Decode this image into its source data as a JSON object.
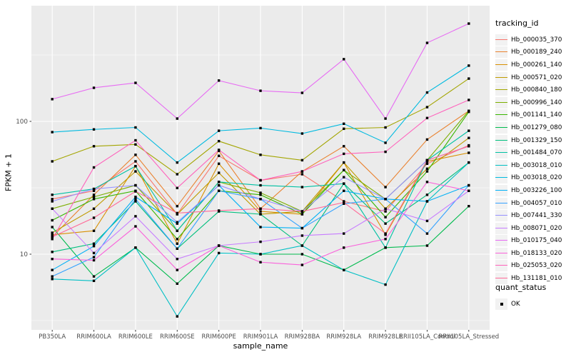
{
  "figure": {
    "background": "#FFFFFF",
    "panel_background": "#EBEBEB",
    "grid_color": "#FFFFFF",
    "tick_color": "#333333",
    "tick_label_color": "#4D4D4D"
  },
  "chart_data": {
    "type": "line",
    "title": "",
    "xlabel": "sample_name",
    "ylabel": "FPKM + 1",
    "y_scale": "log10",
    "ylim": [
      2.7,
      740
    ],
    "y_major_ticks": [
      10,
      100
    ],
    "y_minor_ticks": [
      3.162,
      31.62,
      316.2
    ],
    "grid": true,
    "marker": "filled-black-square",
    "legend_position": "right",
    "legend_title": "tracking_id",
    "categories": [
      "PB350LA",
      "RRIM600LA",
      "RRIM600LE",
      "RRIM600SE",
      "RRIM600PE",
      "RRIM901LA",
      "RRIM928BA",
      "RRIM928LA",
      "RRIM928LE",
      "RRII105LA_Control",
      "RRII105LA_Stressed"
    ],
    "series": [
      {
        "name": "Hb_000035_370",
        "color": "#F8766D",
        "values": [
          26,
          30,
          50,
          20,
          55,
          36,
          40,
          25,
          21,
          48,
          66
        ]
      },
      {
        "name": "Hb_000189_240",
        "color": "#EA8331",
        "values": [
          13.5,
          28,
          56,
          23,
          60,
          22,
          42,
          65,
          32,
          73,
          120
        ]
      },
      {
        "name": "Hb_000261_140",
        "color": "#D89000",
        "values": [
          14,
          15,
          46,
          12,
          48,
          21,
          20,
          49,
          14,
          50,
          58
        ]
      },
      {
        "name": "Hb_000571_020",
        "color": "#C09B00",
        "values": [
          14.5,
          22,
          42,
          20,
          41,
          20,
          21,
          49,
          22,
          44,
          75
        ]
      },
      {
        "name": "Hb_000840_180",
        "color": "#A3A500",
        "values": [
          50,
          65,
          67,
          40,
          71,
          56,
          51,
          88,
          90,
          128,
          210
        ]
      },
      {
        "name": "Hb_000996_140",
        "color": "#7CAE00",
        "values": [
          22,
          27,
          33,
          15,
          35,
          29,
          21,
          43,
          26,
          51,
          120
        ]
      },
      {
        "name": "Hb_001141_140",
        "color": "#39B600",
        "values": [
          18,
          26,
          30,
          13,
          30,
          28,
          20,
          43,
          19,
          42,
          118
        ]
      },
      {
        "name": "Hb_001279_080",
        "color": "#00BB4E",
        "values": [
          16,
          6.8,
          11.2,
          6,
          11.6,
          10,
          10,
          7.6,
          11.2,
          11.6,
          23
        ]
      },
      {
        "name": "Hb_001329_150",
        "color": "#00BF7D",
        "values": [
          10.4,
          12,
          25,
          11,
          21,
          20,
          11.6,
          34,
          17,
          28,
          49
        ]
      },
      {
        "name": "Hb_001484_070",
        "color": "#00C1A3",
        "values": [
          28,
          31,
          46,
          15,
          35,
          33,
          32,
          34,
          11.2,
          51,
          85
        ]
      },
      {
        "name": "Hb_003018_010",
        "color": "#00BFC4",
        "values": [
          6.5,
          6.3,
          11.2,
          3.4,
          10.2,
          10,
          11.6,
          7.6,
          5.9,
          25,
          49
        ]
      },
      {
        "name": "Hb_003018_020",
        "color": "#00BAE0",
        "values": [
          83,
          87,
          90,
          49,
          85,
          89,
          81,
          96,
          69,
          165,
          263
        ]
      },
      {
        "name": "Hb_003226_100",
        "color": "#00B0F6",
        "values": [
          7.6,
          11.5,
          27,
          17,
          33,
          16,
          15.7,
          30,
          26,
          25,
          33
        ]
      },
      {
        "name": "Hb_004057_010",
        "color": "#35A2FF",
        "values": [
          6.8,
          9.5,
          26,
          11,
          30,
          26,
          15.7,
          24,
          26,
          14.3,
          33
        ]
      },
      {
        "name": "Hb_007441_330",
        "color": "#9590FF",
        "values": [
          25,
          31,
          33,
          17.4,
          33,
          26,
          21,
          38,
          26,
          51,
          65
        ]
      },
      {
        "name": "Hb_008071_020",
        "color": "#C77CFF",
        "values": [
          22,
          10.2,
          19.3,
          9.2,
          11.6,
          12.4,
          13.8,
          14.3,
          22,
          17.8,
          30
        ]
      },
      {
        "name": "Hb_010175_040",
        "color": "#E76BF3",
        "values": [
          147,
          179,
          195,
          105,
          203,
          170,
          164,
          294,
          105,
          390,
          545
        ]
      },
      {
        "name": "Hb_018133_020",
        "color": "#FA62DB",
        "values": [
          9.2,
          9,
          16.2,
          7.6,
          11.6,
          8.7,
          8.3,
          11.2,
          13,
          35,
          30
        ]
      },
      {
        "name": "Hb_025053_020",
        "color": "#FF62BC",
        "values": [
          13,
          45,
          72,
          31.5,
          61,
          36,
          42,
          57,
          59,
          106,
          145
        ]
      },
      {
        "name": "Hb_131181_010",
        "color": "#FF6A98",
        "values": [
          13.5,
          18.8,
          29.7,
          20.4,
          21.3,
          22,
          21,
          24.5,
          14.3,
          51,
          65
        ]
      }
    ],
    "legend2_title": "quant_status",
    "legend2_items": [
      {
        "label": "OK",
        "marker": "black-square"
      }
    ]
  }
}
